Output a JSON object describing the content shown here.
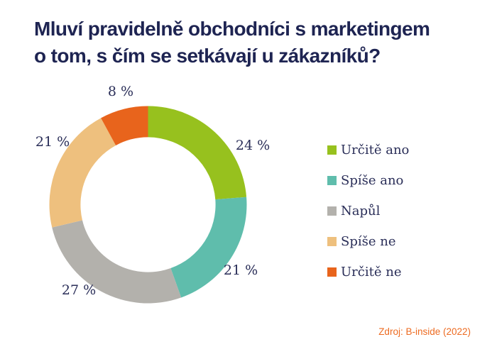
{
  "title": {
    "line1": "Mluví pravidelně obchodníci s marketingem",
    "line2": "o tom, s čím se setkávají u zákazníků?"
  },
  "chart_data": {
    "type": "pie",
    "subtype": "donut",
    "title": "Mluví pravidelně obchodníci s marketingem o tom, s čím se setkávají u zákazníků?",
    "categories": [
      "Určitě ano",
      "Spíše ano",
      "Napůl",
      "Spíše ne",
      "Určitě ne"
    ],
    "values": [
      24,
      21,
      27,
      21,
      8
    ],
    "unit": "%",
    "display_labels": [
      "24 %",
      "21 %",
      "27 %",
      "21 %",
      "8 %"
    ],
    "colors": [
      "#97c11e",
      "#5fbdac",
      "#b3b1ac",
      "#eec07e",
      "#e8641c"
    ],
    "start_angle_deg": 0,
    "direction": "clockwise",
    "inner_radius_ratio": 0.684,
    "legend_position": "right",
    "label_color": "#2a2e58"
  },
  "source": {
    "text": "Zdroj: B-inside (2022)",
    "color": "#ed6b21"
  }
}
